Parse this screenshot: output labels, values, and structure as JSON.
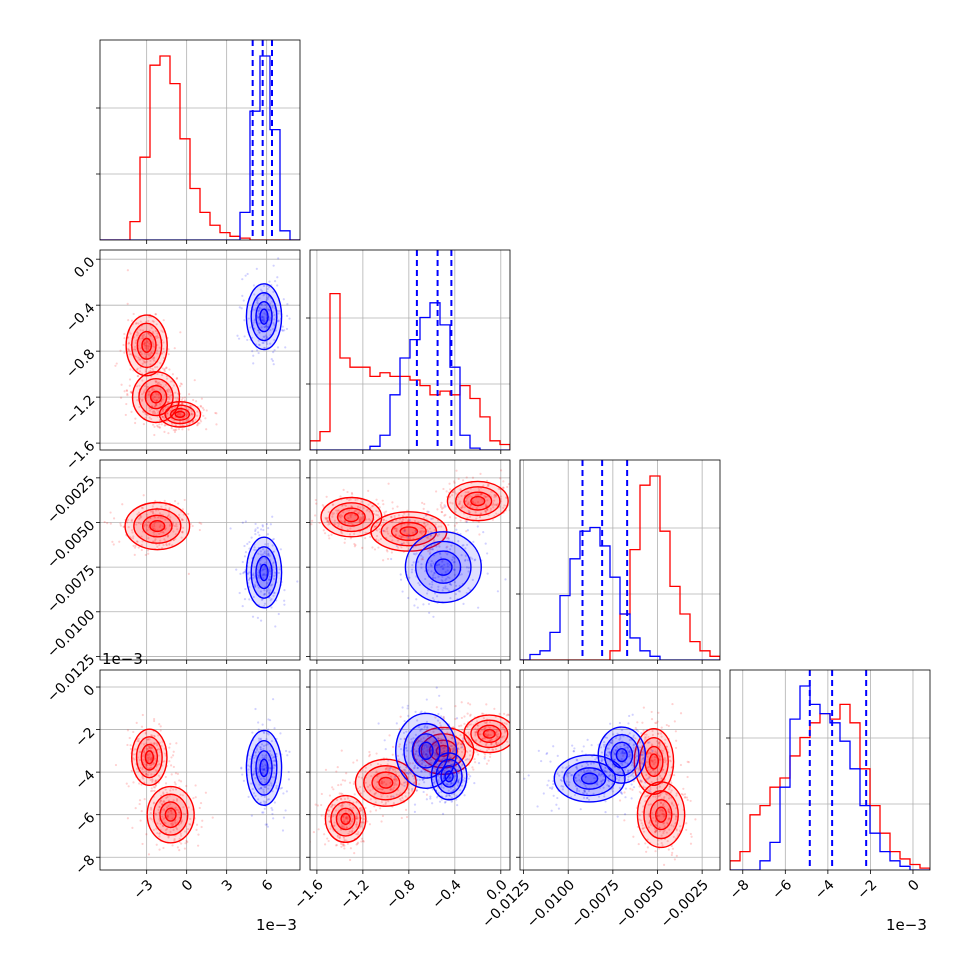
{
  "chart_data": {
    "type": "corner",
    "grid": true,
    "parameters": [
      {
        "range": [
          -6.5,
          8.5
        ],
        "ticks": [
          -3,
          0,
          3,
          6
        ],
        "tick_labels": [
          "−3",
          "0",
          "3",
          "6"
        ],
        "offset": "1e−3"
      },
      {
        "range": [
          -1.66,
          0.08
        ],
        "ticks": [
          -1.6,
          -1.2,
          -0.8,
          -0.4,
          0.0
        ],
        "tick_labels": [
          "−1.6",
          "−1.2",
          "−0.8",
          "−0.4",
          "0.0"
        ],
        "offset": ""
      },
      {
        "range": [
          -0.0127,
          -0.0015
        ],
        "ticks": [
          -0.0125,
          -0.01,
          -0.0075,
          -0.005,
          -0.0025
        ],
        "tick_labels": [
          "−0.0125",
          "−0.0100",
          "−0.0075",
          "−0.0050",
          "−0.0025"
        ],
        "offset": ""
      },
      {
        "range": [
          -8.6,
          0.8
        ],
        "ticks": [
          -8,
          -6,
          -4,
          -2,
          0
        ],
        "tick_labels": [
          "−8",
          "−6",
          "−4",
          "−2",
          "0"
        ],
        "offset": "1e−3"
      }
    ],
    "series": [
      {
        "color": "#ff0000",
        "clusters": [
          {
            "params": [
              0,
              1
            ],
            "centers": [
              [
                -3.0,
                -0.75
              ],
              [
                -2.3,
                -1.2
              ],
              [
                -0.5,
                -1.35
              ]
            ],
            "spread": [
              [
                0.7,
                0.12
              ],
              [
                0.8,
                0.1
              ],
              [
                0.7,
                0.05
              ]
            ]
          },
          {
            "params": [
              0,
              2
            ],
            "centers": [
              [
                -2.2,
                -0.0052
              ]
            ],
            "spread": [
              [
                1.1,
                0.0006
              ]
            ]
          },
          {
            "params": [
              0,
              3
            ],
            "centers": [
              [
                -2.8,
                -3.3
              ],
              [
                -1.2,
                -6.0
              ]
            ],
            "spread": [
              [
                0.6,
                0.6
              ],
              [
                0.8,
                0.6
              ]
            ]
          },
          {
            "params": [
              1,
              2
            ],
            "centers": [
              [
                -1.3,
                -0.0047
              ],
              [
                -0.8,
                -0.0055
              ],
              [
                -0.2,
                -0.0038
              ]
            ],
            "spread": [
              [
                0.12,
                0.0005
              ],
              [
                0.15,
                0.0005
              ],
              [
                0.12,
                0.0005
              ]
            ]
          },
          {
            "params": [
              1,
              3
            ],
            "centers": [
              [
                -1.35,
                -6.2
              ],
              [
                -1.0,
                -4.5
              ],
              [
                -0.5,
                -3.0
              ],
              [
                -0.1,
                -2.2
              ]
            ],
            "spread": [
              [
                0.08,
                0.5
              ],
              [
                0.12,
                0.5
              ],
              [
                0.12,
                0.5
              ],
              [
                0.1,
                0.4
              ]
            ]
          },
          {
            "params": [
              2,
              3
            ],
            "centers": [
              [
                -0.0052,
                -3.5
              ],
              [
                -0.0048,
                -6.0
              ]
            ],
            "spread": [
              [
                0.0005,
                0.7
              ],
              [
                0.0006,
                0.7
              ]
            ]
          }
        ],
        "hist": [
          {
            "edges": [
              -6.5,
              8.5
            ],
            "values": [
              0,
              0,
              0,
              0.1,
              0.45,
              0.95,
              1.0,
              0.85,
              0.55,
              0.28,
              0.15,
              0.08,
              0.04,
              0.02,
              0.01,
              0,
              0,
              0,
              0,
              0
            ]
          },
          {
            "edges": [
              -1.66,
              0.08
            ],
            "values": [
              0.05,
              0.1,
              0.85,
              0.5,
              0.45,
              0.45,
              0.4,
              0.42,
              0.4,
              0.4,
              0.38,
              0.35,
              0.3,
              0.32,
              0.3,
              0.35,
              0.28,
              0.18,
              0.05,
              0.03
            ]
          },
          {
            "edges": [
              -0.0127,
              -0.0015
            ],
            "values": [
              0,
              0,
              0,
              0,
              0,
              0,
              0,
              0,
              0,
              0.05,
              0.25,
              0.6,
              0.95,
              1.0,
              0.7,
              0.4,
              0.25,
              0.1,
              0.05,
              0.02
            ]
          },
          {
            "edges": [
              -8.6,
              0.8
            ],
            "values": [
              0.05,
              0.1,
              0.3,
              0.35,
              0.45,
              0.5,
              0.62,
              0.72,
              0.8,
              0.85,
              0.82,
              0.9,
              0.8,
              0.55,
              0.35,
              0.2,
              0.1,
              0.06,
              0.03,
              0.01
            ]
          }
        ]
      },
      {
        "color": "#0000ff",
        "clusters": [
          {
            "params": [
              0,
              1
            ],
            "centers": [
              [
                5.8,
                -0.5
              ]
            ],
            "spread": [
              [
                0.6,
                0.13
              ]
            ]
          },
          {
            "params": [
              0,
              2
            ],
            "centers": [
              [
                5.8,
                -0.0078
              ]
            ],
            "spread": [
              [
                0.6,
                0.0009
              ]
            ]
          },
          {
            "params": [
              0,
              3
            ],
            "centers": [
              [
                5.8,
                -3.8
              ]
            ],
            "spread": [
              [
                0.6,
                0.8
              ]
            ]
          },
          {
            "params": [
              1,
              2
            ],
            "centers": [
              [
                -0.5,
                -0.0075
              ]
            ],
            "spread": [
              [
                0.15,
                0.0009
              ]
            ]
          },
          {
            "params": [
              1,
              3
            ],
            "centers": [
              [
                -0.65,
                -3.0
              ],
              [
                -0.45,
                -4.2
              ]
            ],
            "spread": [
              [
                0.12,
                0.8
              ],
              [
                0.07,
                0.5
              ]
            ]
          },
          {
            "params": [
              2,
              3
            ],
            "centers": [
              [
                -0.0088,
                -4.3
              ],
              [
                -0.007,
                -3.2
              ]
            ],
            "spread": [
              [
                0.0009,
                0.5
              ],
              [
                0.0006,
                0.6
              ]
            ]
          }
        ],
        "hist": [
          {
            "edges": [
              -6.5,
              8.5
            ],
            "values": [
              0,
              0,
              0,
              0,
              0,
              0,
              0,
              0,
              0,
              0,
              0,
              0,
              0,
              0,
              0.15,
              0.7,
              1.0,
              0.6,
              0.05,
              0
            ]
          },
          {
            "edges": [
              -1.66,
              0.08
            ],
            "values": [
              0,
              0,
              0,
              0,
              0,
              0,
              0.02,
              0.08,
              0.3,
              0.5,
              0.6,
              0.72,
              0.8,
              0.68,
              0.45,
              0.08,
              0.01,
              0,
              0,
              0
            ]
          },
          {
            "edges": [
              -0.0127,
              -0.0015
            ],
            "values": [
              0,
              0.03,
              0.05,
              0.15,
              0.35,
              0.55,
              0.7,
              0.72,
              0.62,
              0.45,
              0.25,
              0.12,
              0.05,
              0.02,
              0,
              0,
              0,
              0,
              0,
              0
            ]
          },
          {
            "edges": [
              -8.6,
              0.8
            ],
            "values": [
              0,
              0,
              0,
              0.05,
              0.15,
              0.45,
              0.82,
              1.0,
              0.9,
              0.85,
              0.8,
              0.7,
              0.55,
              0.35,
              0.2,
              0.1,
              0.05,
              0.02,
              0,
              0
            ]
          }
        ],
        "quantiles": [
          [
            4.95,
            5.7,
            6.4
          ],
          [
            -0.73,
            -0.55,
            -0.43
          ],
          [
            -0.0092,
            -0.0081,
            -0.0067
          ],
          [
            -4.85,
            -3.8,
            -2.2
          ]
        ]
      }
    ]
  }
}
